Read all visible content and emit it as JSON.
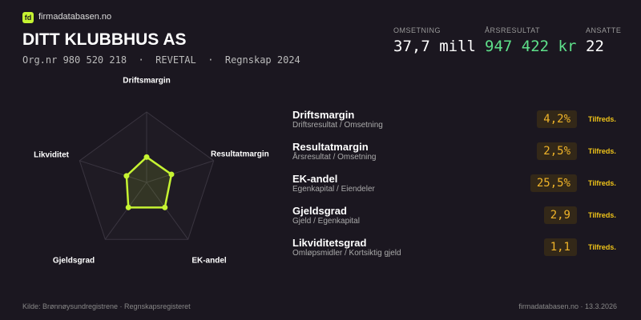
{
  "header": {
    "logo": "fd",
    "site": "firmadatabasen.no",
    "title": "DITT KLUBBHUS AS",
    "subtitle": "Org.nr 980 520 218  ·  REVETAL  ·  Regnskap 2024"
  },
  "stats": [
    {
      "label": "OMSETNING",
      "value": "37,7 mill"
    },
    {
      "label": "ÅRSRESULTAT",
      "value": "947 422 kr"
    },
    {
      "label": "ANSATTE",
      "value": "22"
    }
  ],
  "metrics": [
    {
      "name": "Driftsmargin",
      "formula": "Driftsresultat / Omsetning",
      "value": "4,2%",
      "status": "Tilfreds."
    },
    {
      "name": "Resultatmargin",
      "formula": "Årsresultat / Omsetning",
      "value": "2,5%",
      "status": "Tilfreds."
    },
    {
      "name": "EK-andel",
      "formula": "Egenkapital / Eiendeler",
      "value": "25,5%",
      "status": "Tilfreds."
    },
    {
      "name": "Gjeldsgrad",
      "formula": "Gjeld / Egenkapital",
      "value": "2,9",
      "status": "Tilfreds."
    },
    {
      "name": "Likviditetsgrad",
      "formula": "Omløpsmidler / Kortsiktig gjeld",
      "value": "1,1",
      "status": "Tilfreds."
    }
  ],
  "footer": {
    "source": "Kilde: Brønnøysundregistrene · Regnskapsregisteret",
    "right": "firmadatabasen.no · 13.3.2026"
  },
  "chart_data": {
    "type": "radar",
    "categories": [
      "Driftsmargin",
      "Resultatmargin",
      "EK-andel",
      "Gjeldsgrad",
      "Likviditet"
    ],
    "values": [
      36,
      37,
      44,
      44,
      30
    ],
    "rlim": [
      0,
      100
    ],
    "rticks": [
      25,
      50,
      75,
      100
    ],
    "color": "#c6f432"
  }
}
